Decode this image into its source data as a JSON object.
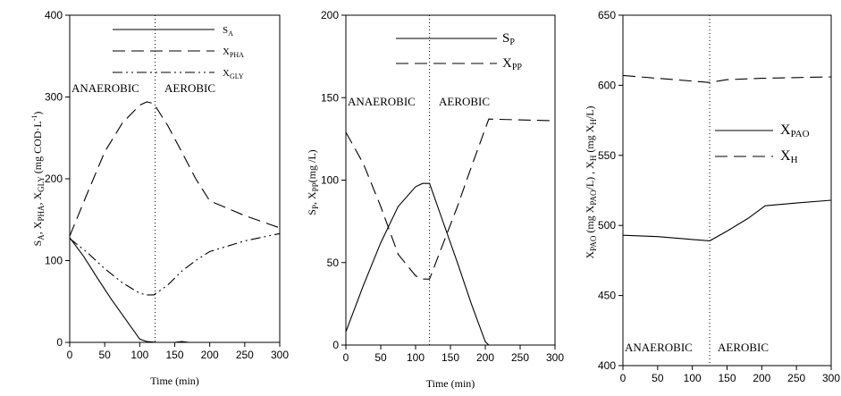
{
  "chart_data": [
    {
      "type": "line",
      "xlabel": "Time (min)",
      "ylabel": {
        "main": "S",
        "parts": [
          [
            "A",
            ", X"
          ],
          [
            "PHA",
            ", X"
          ],
          [
            "GLY",
            " (mg COD·L"
          ],
          [
            "-1",
            ")"
          ]
        ]
      },
      "xlim": [
        0,
        300
      ],
      "ylim": [
        0,
        400
      ],
      "xticks": [
        0,
        50,
        100,
        150,
        200,
        250,
        300
      ],
      "yticks": [
        0,
        100,
        200,
        300,
        400
      ],
      "phase_divider_x": 122,
      "phase_labels": {
        "left": "ANAEROBIC",
        "right": "AEROBIC"
      },
      "series": [
        {
          "name": "S",
          "sub": "A",
          "dash": "solid",
          "x": [
            0,
            20,
            40,
            60,
            80,
            100,
            110,
            125,
            150,
            160,
            170,
            200,
            300
          ],
          "y": [
            128,
            105,
            78,
            52,
            28,
            4,
            1,
            0,
            0,
            1,
            0,
            0,
            0
          ]
        },
        {
          "name": "X",
          "sub": "PHA",
          "dash": "dash",
          "x": [
            0,
            25,
            50,
            75,
            100,
            110,
            120,
            140,
            160,
            180,
            200,
            250,
            300
          ],
          "y": [
            130,
            182,
            233,
            268,
            290,
            294,
            292,
            265,
            233,
            200,
            173,
            155,
            140
          ]
        },
        {
          "name": "X",
          "sub": "GLY",
          "dash": "dashdotdot",
          "x": [
            0,
            25,
            50,
            75,
            100,
            110,
            120,
            140,
            160,
            180,
            200,
            250,
            300
          ],
          "y": [
            127,
            110,
            90,
            73,
            60,
            58,
            58,
            70,
            87,
            100,
            111,
            124,
            133
          ]
        }
      ]
    },
    {
      "type": "line",
      "xlabel": "Time (min)",
      "ylabel": {
        "main": "S",
        "parts": [
          [
            "P",
            ", X"
          ],
          [
            "PP",
            "(mg /L)"
          ]
        ]
      },
      "xlim": [
        0,
        300
      ],
      "ylim": [
        0,
        200
      ],
      "xticks": [
        0,
        50,
        100,
        150,
        200,
        250,
        300
      ],
      "yticks": [
        0,
        50,
        100,
        150,
        200
      ],
      "phase_divider_x": 120,
      "phase_labels": {
        "left": "ANAEROBIC",
        "right": "AEROBIC"
      },
      "series": [
        {
          "name": "S",
          "sub": "P",
          "dash": "solid",
          "x": [
            0,
            25,
            50,
            75,
            100,
            110,
            120,
            140,
            160,
            180,
            200,
            205,
            300
          ],
          "y": [
            8,
            36,
            62,
            84,
            96,
            98,
            98,
            74,
            50,
            25,
            2,
            0,
            0
          ]
        },
        {
          "name": "X",
          "sub": "PP",
          "dash": "dash",
          "x": [
            0,
            25,
            50,
            75,
            100,
            110,
            120,
            140,
            160,
            180,
            205,
            300
          ],
          "y": [
            129,
            110,
            84,
            55,
            42,
            40,
            40,
            62,
            84,
            108,
            137,
            136
          ]
        }
      ]
    },
    {
      "type": "line",
      "xlabel": "Time (min)",
      "ylabel": {
        "main": "X",
        "parts": [
          [
            "PAO",
            " (mg X"
          ],
          [
            "PAO",
            "/L) , X"
          ],
          [
            "H",
            " (mg X"
          ],
          [
            "H",
            "/L)"
          ]
        ]
      },
      "xlim": [
        0,
        300
      ],
      "ylim": [
        400,
        650
      ],
      "xticks": [
        0,
        50,
        100,
        150,
        200,
        250,
        300
      ],
      "yticks": [
        400,
        450,
        500,
        550,
        600,
        650
      ],
      "phase_divider_x": 125,
      "phase_labels": {
        "left": "ANAEROBIC",
        "right": "AEROBIC"
      },
      "series": [
        {
          "name": "X",
          "sub": "PAO",
          "dash": "solid",
          "x": [
            0,
            50,
            100,
            125,
            150,
            180,
            205,
            250,
            300
          ],
          "y": [
            493,
            492,
            490,
            489,
            496,
            505,
            514,
            516,
            518
          ]
        },
        {
          "name": "X",
          "sub": "H",
          "dash": "dash",
          "x": [
            0,
            50,
            100,
            125,
            150,
            200,
            250,
            300
          ],
          "y": [
            607,
            605,
            603,
            602,
            604,
            605,
            605.5,
            606
          ]
        }
      ]
    }
  ]
}
